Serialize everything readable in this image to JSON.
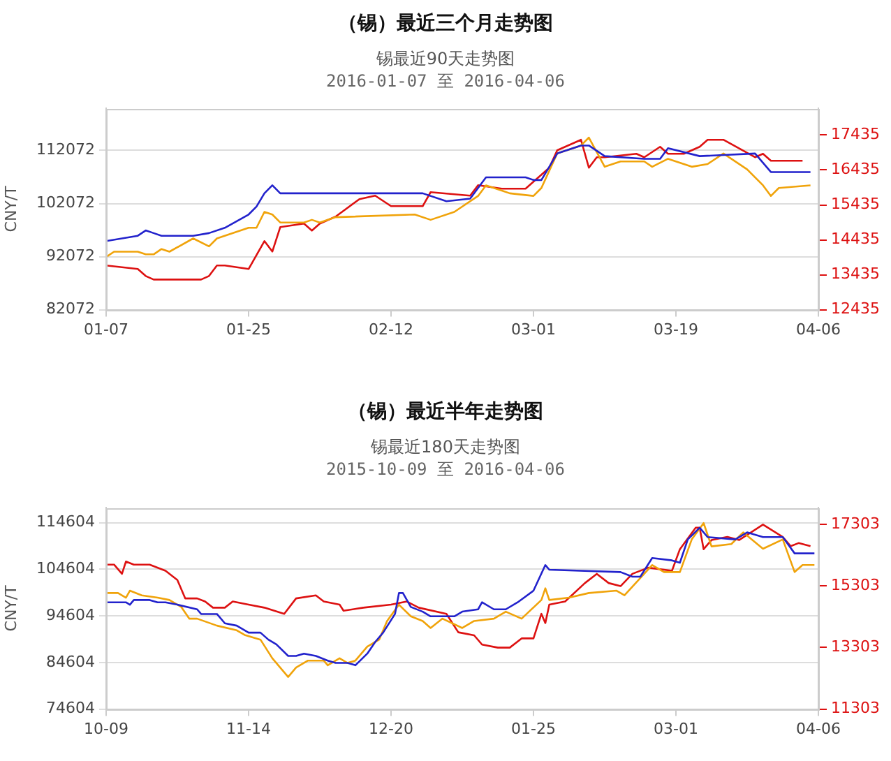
{
  "chart_data": [
    {
      "type": "line",
      "title": "（锡）最近三个月走势图",
      "subtitle": "锡最近90天走势图\n2016-01-07 至 2016-04-06",
      "ylabel": "CNY/T",
      "xlim": [
        "2016-01-07",
        "2016-04-06"
      ],
      "xticks": [
        {
          "value": "2016-01-07",
          "label": "01-07"
        },
        {
          "value": "2016-01-25",
          "label": "01-25"
        },
        {
          "value": "2016-02-12",
          "label": "02-12"
        },
        {
          "value": "2016-03-01",
          "label": "03-01"
        },
        {
          "value": "2016-03-19",
          "label": "03-19"
        },
        {
          "value": "2016-04-06",
          "label": "04-06"
        }
      ],
      "ylim": [
        82072,
        120000
      ],
      "yticks": [
        82072,
        92072,
        102072,
        112072
      ],
      "y2lim": [
        12435,
        18200
      ],
      "y2ticks": [
        12435,
        13435,
        14435,
        15435,
        16435,
        17435
      ],
      "grid": "y",
      "marker": "none",
      "line_style": "solid",
      "series": [
        {
          "color": "#2222cc",
          "x": [
            "2016-01-07",
            "2016-01-11",
            "2016-01-12",
            "2016-01-13",
            "2016-01-14",
            "2016-01-18",
            "2016-01-20",
            "2016-01-22",
            "2016-01-25",
            "2016-01-26",
            "2016-01-27",
            "2016-01-28",
            "2016-01-29",
            "2016-02-16",
            "2016-02-19",
            "2016-02-22",
            "2016-02-24",
            "2016-02-25",
            "2016-02-29",
            "2016-03-01",
            "2016-03-02",
            "2016-03-04",
            "2016-03-07",
            "2016-03-08",
            "2016-03-10",
            "2016-03-15",
            "2016-03-17",
            "2016-03-18",
            "2016-03-22",
            "2016-03-29",
            "2016-03-31",
            "2016-04-05"
          ],
          "values": [
            95000,
            96000,
            97000,
            96500,
            96000,
            96000,
            96500,
            97500,
            100000,
            101500,
            104000,
            105500,
            104000,
            104000,
            102500,
            103000,
            107000,
            107000,
            107000,
            106500,
            106500,
            111500,
            113000,
            113000,
            111000,
            110500,
            110500,
            112500,
            111000,
            111500,
            108000,
            108000
          ]
        },
        {
          "color": "#f0a30a",
          "x": [
            "2016-01-07",
            "2016-01-08",
            "2016-01-11",
            "2016-01-12",
            "2016-01-13",
            "2016-01-14",
            "2016-01-15",
            "2016-01-18",
            "2016-01-20",
            "2016-01-21",
            "2016-01-25",
            "2016-01-26",
            "2016-01-27",
            "2016-01-28",
            "2016-01-29",
            "2016-02-01",
            "2016-02-02",
            "2016-02-03",
            "2016-02-05",
            "2016-02-15",
            "2016-02-17",
            "2016-02-20",
            "2016-02-23",
            "2016-02-24",
            "2016-02-26",
            "2016-02-27",
            "2016-03-01",
            "2016-03-02",
            "2016-03-04",
            "2016-03-07",
            "2016-03-08",
            "2016-03-10",
            "2016-03-12",
            "2016-03-15",
            "2016-03-16",
            "2016-03-18",
            "2016-03-20",
            "2016-03-21",
            "2016-03-23",
            "2016-03-25",
            "2016-03-28",
            "2016-03-30",
            "2016-03-31",
            "2016-04-01",
            "2016-04-05"
          ],
          "values": [
            92000,
            93000,
            93000,
            92500,
            92500,
            93500,
            93000,
            95500,
            94000,
            95500,
            97500,
            97500,
            100500,
            100000,
            98500,
            98500,
            99000,
            98500,
            99500,
            100000,
            99000,
            100500,
            103500,
            105500,
            104500,
            104000,
            103500,
            105000,
            111500,
            113000,
            114500,
            109000,
            110000,
            110000,
            109000,
            110500,
            109500,
            109000,
            109500,
            111500,
            108500,
            105500,
            103500,
            105000,
            105500
          ]
        },
        {
          "color": "#dd1111",
          "axis": "y2",
          "x": [
            "2016-01-07",
            "2016-01-11",
            "2016-01-12",
            "2016-01-13",
            "2016-01-18",
            "2016-01-19",
            "2016-01-20",
            "2016-01-21",
            "2016-01-22",
            "2016-01-25",
            "2016-01-27",
            "2016-01-28",
            "2016-01-29",
            "2016-02-01",
            "2016-02-02",
            "2016-02-03",
            "2016-02-05",
            "2016-02-08",
            "2016-02-10",
            "2016-02-12",
            "2016-02-16",
            "2016-02-17",
            "2016-02-22",
            "2016-02-23",
            "2016-02-26",
            "2016-02-29",
            "2016-03-01",
            "2016-03-03",
            "2016-03-04",
            "2016-03-07",
            "2016-03-08",
            "2016-03-09",
            "2016-03-10",
            "2016-03-14",
            "2016-03-15",
            "2016-03-17",
            "2016-03-18",
            "2016-03-20",
            "2016-03-22",
            "2016-03-23",
            "2016-03-25",
            "2016-03-29",
            "2016-03-30",
            "2016-03-31",
            "2016-04-01",
            "2016-04-04"
          ],
          "values": [
            13700,
            13600,
            13400,
            13300,
            13300,
            13300,
            13400,
            13700,
            13700,
            13600,
            14400,
            14100,
            14800,
            14900,
            14700,
            14900,
            15100,
            15600,
            15700,
            15400,
            15400,
            15800,
            15700,
            16000,
            15900,
            15900,
            16100,
            16500,
            17000,
            17300,
            16500,
            16800,
            16800,
            16900,
            16800,
            17100,
            16900,
            16900,
            17100,
            17300,
            17300,
            16800,
            16900,
            16700,
            16700,
            16700
          ]
        }
      ]
    },
    {
      "type": "line",
      "title": "（锡）最近半年走势图",
      "subtitle": "锡最近180天走势图\n2015-10-09 至 2016-04-06",
      "ylabel": "CNY/T",
      "xlim": [
        "2015-10-09",
        "2016-04-06"
      ],
      "xticks": [
        {
          "value": "2015-10-09",
          "label": "10-09"
        },
        {
          "value": "2015-11-14",
          "label": "11-14"
        },
        {
          "value": "2015-12-20",
          "label": "12-20"
        },
        {
          "value": "2016-01-25",
          "label": "01-25"
        },
        {
          "value": "2016-03-01",
          "label": "03-01"
        },
        {
          "value": "2016-04-06",
          "label": "04-06"
        }
      ],
      "ylim": [
        74604,
        117800
      ],
      "yticks": [
        74604,
        84604,
        94604,
        104604,
        114604
      ],
      "y2lim": [
        11303,
        17850
      ],
      "y2ticks": [
        11303,
        13303,
        15303,
        17303
      ],
      "grid": "y",
      "marker": "none",
      "line_style": "solid",
      "series": [
        {
          "color": "#2222cc",
          "x": [
            "2015-10-09",
            "2015-10-14",
            "2015-10-15",
            "2015-10-16",
            "2015-10-20",
            "2015-10-22",
            "2015-10-24",
            "2015-10-27",
            "2015-11-01",
            "2015-11-02",
            "2015-11-06",
            "2015-11-08",
            "2015-11-11",
            "2015-11-14",
            "2015-11-17",
            "2015-11-19",
            "2015-11-21",
            "2015-11-24",
            "2015-11-26",
            "2015-11-28",
            "2015-12-01",
            "2015-12-04",
            "2015-12-06",
            "2015-12-09",
            "2015-12-11",
            "2015-12-14",
            "2015-12-16",
            "2015-12-18",
            "2015-12-21",
            "2015-12-22",
            "2015-12-23",
            "2015-12-25",
            "2015-12-28",
            "2015-12-30",
            "2016-01-05",
            "2016-01-07",
            "2016-01-11",
            "2016-01-12",
            "2016-01-15",
            "2016-01-18",
            "2016-01-21",
            "2016-01-25",
            "2016-01-28",
            "2016-01-29",
            "2016-02-16",
            "2016-02-19",
            "2016-02-21",
            "2016-02-24",
            "2016-02-29",
            "2016-03-02",
            "2016-03-04",
            "2016-03-07",
            "2016-03-09",
            "2016-03-16",
            "2016-03-19",
            "2016-03-23",
            "2016-03-28",
            "2016-03-31",
            "2016-04-02",
            "2016-04-05"
          ],
          "values": [
            97500,
            97500,
            97000,
            98000,
            98000,
            97500,
            97500,
            97000,
            96000,
            95000,
            95000,
            93000,
            92500,
            91000,
            91000,
            89500,
            88500,
            86000,
            86000,
            86500,
            86000,
            85000,
            84500,
            84500,
            84000,
            86500,
            89000,
            91000,
            95000,
            99500,
            99500,
            96500,
            95500,
            94500,
            94500,
            95500,
            96000,
            97500,
            96000,
            96000,
            97500,
            100000,
            105500,
            104500,
            104000,
            103000,
            103000,
            107000,
            106500,
            106000,
            111000,
            113500,
            111500,
            111000,
            112500,
            111500,
            111500,
            108000,
            108000,
            108000
          ]
        },
        {
          "color": "#f0a30a",
          "x": [
            "2015-10-09",
            "2015-10-12",
            "2015-10-14",
            "2015-10-15",
            "2015-10-18",
            "2015-10-22",
            "2015-10-25",
            "2015-10-28",
            "2015-10-30",
            "2015-11-01",
            "2015-11-06",
            "2015-11-11",
            "2015-11-13",
            "2015-11-17",
            "2015-11-20",
            "2015-11-24",
            "2015-11-26",
            "2015-11-29",
            "2015-12-03",
            "2015-12-04",
            "2015-12-07",
            "2015-12-09",
            "2015-12-11",
            "2015-12-14",
            "2015-12-17",
            "2015-12-19",
            "2015-12-22",
            "2015-12-25",
            "2015-12-28",
            "2015-12-30",
            "2016-01-02",
            "2016-01-07",
            "2016-01-10",
            "2016-01-15",
            "2016-01-18",
            "2016-01-22",
            "2016-01-27",
            "2016-01-28",
            "2016-01-29",
            "2016-02-03",
            "2016-02-08",
            "2016-02-15",
            "2016-02-17",
            "2016-02-24",
            "2016-02-27",
            "2016-03-02",
            "2016-03-05",
            "2016-03-08",
            "2016-03-10",
            "2016-03-15",
            "2016-03-18",
            "2016-03-23",
            "2016-03-28",
            "2016-03-31",
            "2016-04-02",
            "2016-04-05"
          ],
          "values": [
            99500,
            99500,
            98500,
            100000,
            99000,
            98500,
            98000,
            96500,
            94000,
            94000,
            92500,
            91500,
            90500,
            89500,
            85500,
            81500,
            83500,
            85000,
            85000,
            84000,
            85500,
            84500,
            85000,
            88000,
            89500,
            93500,
            97000,
            94500,
            93500,
            92000,
            94000,
            92000,
            93500,
            94000,
            95500,
            94000,
            98000,
            100500,
            98000,
            98500,
            99500,
            100000,
            99000,
            105500,
            104000,
            104000,
            111000,
            114500,
            109500,
            110000,
            112500,
            109000,
            111000,
            104000,
            105500,
            105500
          ]
        },
        {
          "color": "#dd1111",
          "axis": "y2",
          "x": [
            "2015-10-09",
            "2015-10-11",
            "2015-10-13",
            "2015-10-14",
            "2015-10-16",
            "2015-10-20",
            "2015-10-24",
            "2015-10-27",
            "2015-10-29",
            "2015-11-01",
            "2015-11-03",
            "2015-11-05",
            "2015-11-08",
            "2015-11-10",
            "2015-11-14",
            "2015-11-18",
            "2015-11-23",
            "2015-11-26",
            "2015-12-01",
            "2015-12-03",
            "2015-12-07",
            "2015-12-08",
            "2015-12-13",
            "2015-12-20",
            "2015-12-24",
            "2015-12-27",
            "2016-01-03",
            "2016-01-06",
            "2016-01-10",
            "2016-01-12",
            "2016-01-16",
            "2016-01-19",
            "2016-01-22",
            "2016-01-25",
            "2016-01-27",
            "2016-01-28",
            "2016-01-29",
            "2016-02-02",
            "2016-02-07",
            "2016-02-10",
            "2016-02-13",
            "2016-02-16",
            "2016-02-19",
            "2016-02-23",
            "2016-02-29",
            "2016-03-02",
            "2016-03-06",
            "2016-03-07",
            "2016-03-08",
            "2016-03-10",
            "2016-03-14",
            "2016-03-17",
            "2016-03-23",
            "2016-03-28",
            "2016-03-30",
            "2016-04-01",
            "2016-04-04"
          ],
          "values": [
            16000,
            16000,
            15700,
            16100,
            16000,
            16000,
            15800,
            15500,
            14900,
            14900,
            14800,
            14600,
            14600,
            14800,
            14700,
            14600,
            14400,
            14900,
            15000,
            14800,
            14700,
            14500,
            14600,
            14700,
            14800,
            14600,
            14400,
            13800,
            13700,
            13400,
            13300,
            13300,
            13600,
            13600,
            14400,
            14100,
            14700,
            14800,
            15400,
            15700,
            15400,
            15300,
            15700,
            15900,
            15800,
            16500,
            17200,
            17200,
            16500,
            16800,
            16900,
            16800,
            17300,
            16900,
            16600,
            16700,
            16600
          ]
        }
      ]
    }
  ]
}
